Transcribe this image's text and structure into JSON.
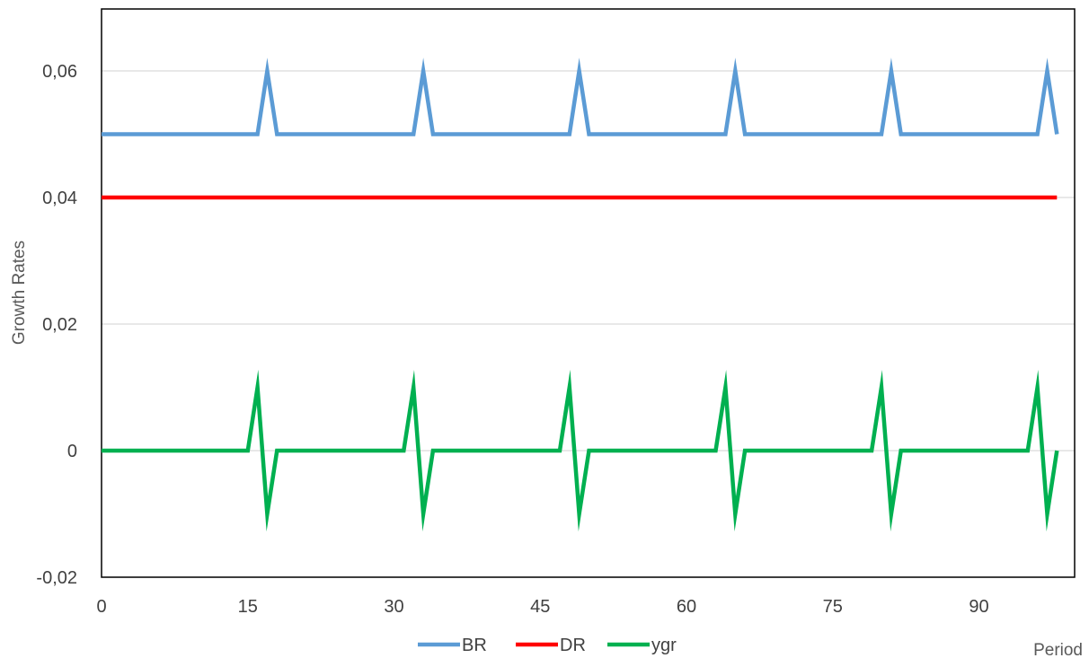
{
  "chart_data": {
    "type": "line",
    "title": "",
    "xlabel": "Period",
    "ylabel": "Growth Rates",
    "xlim": [
      0,
      98
    ],
    "ylim": [
      -0.02,
      0.07
    ],
    "x_ticks": [
      0,
      15,
      30,
      45,
      60,
      75,
      90
    ],
    "x_tick_labels": [
      "0",
      "15",
      "30",
      "45",
      "60",
      "75",
      "90"
    ],
    "y_ticks": [
      -0.02,
      0,
      0.02,
      0.04,
      0.06
    ],
    "y_tick_labels": [
      "-0,02",
      "0",
      "0,02",
      "0,04",
      "0,06"
    ],
    "grid": true,
    "legend_position": "bottom",
    "series": [
      {
        "name": "BR",
        "color": "#5b9bd5",
        "points": [
          [
            0,
            0.05
          ],
          [
            16,
            0.05
          ],
          [
            17,
            0.06
          ],
          [
            18,
            0.05
          ],
          [
            32,
            0.05
          ],
          [
            33,
            0.06
          ],
          [
            34,
            0.05
          ],
          [
            48,
            0.05
          ],
          [
            49,
            0.06
          ],
          [
            50,
            0.05
          ],
          [
            64,
            0.05
          ],
          [
            65,
            0.06
          ],
          [
            66,
            0.05
          ],
          [
            80,
            0.05
          ],
          [
            81,
            0.06
          ],
          [
            82,
            0.05
          ],
          [
            96,
            0.05
          ],
          [
            97,
            0.06
          ],
          [
            98,
            0.05
          ]
        ]
      },
      {
        "name": "DR",
        "color": "#ff0000",
        "points": [
          [
            0,
            0.04
          ],
          [
            98,
            0.04
          ]
        ]
      },
      {
        "name": "ygr",
        "color": "#00b050",
        "points": [
          [
            0,
            0
          ],
          [
            15,
            0
          ],
          [
            16,
            0.01
          ],
          [
            17,
            -0.01
          ],
          [
            18,
            0
          ],
          [
            31,
            0
          ],
          [
            32,
            0.01
          ],
          [
            33,
            -0.01
          ],
          [
            34,
            0
          ],
          [
            47,
            0
          ],
          [
            48,
            0.01
          ],
          [
            49,
            -0.01
          ],
          [
            50,
            0
          ],
          [
            63,
            0
          ],
          [
            64,
            0.01
          ],
          [
            65,
            -0.01
          ],
          [
            66,
            0
          ],
          [
            79,
            0
          ],
          [
            80,
            0.01
          ],
          [
            81,
            -0.01
          ],
          [
            82,
            0
          ],
          [
            95,
            0
          ],
          [
            96,
            0.01
          ],
          [
            97,
            -0.01
          ],
          [
            98,
            0
          ]
        ]
      }
    ]
  }
}
